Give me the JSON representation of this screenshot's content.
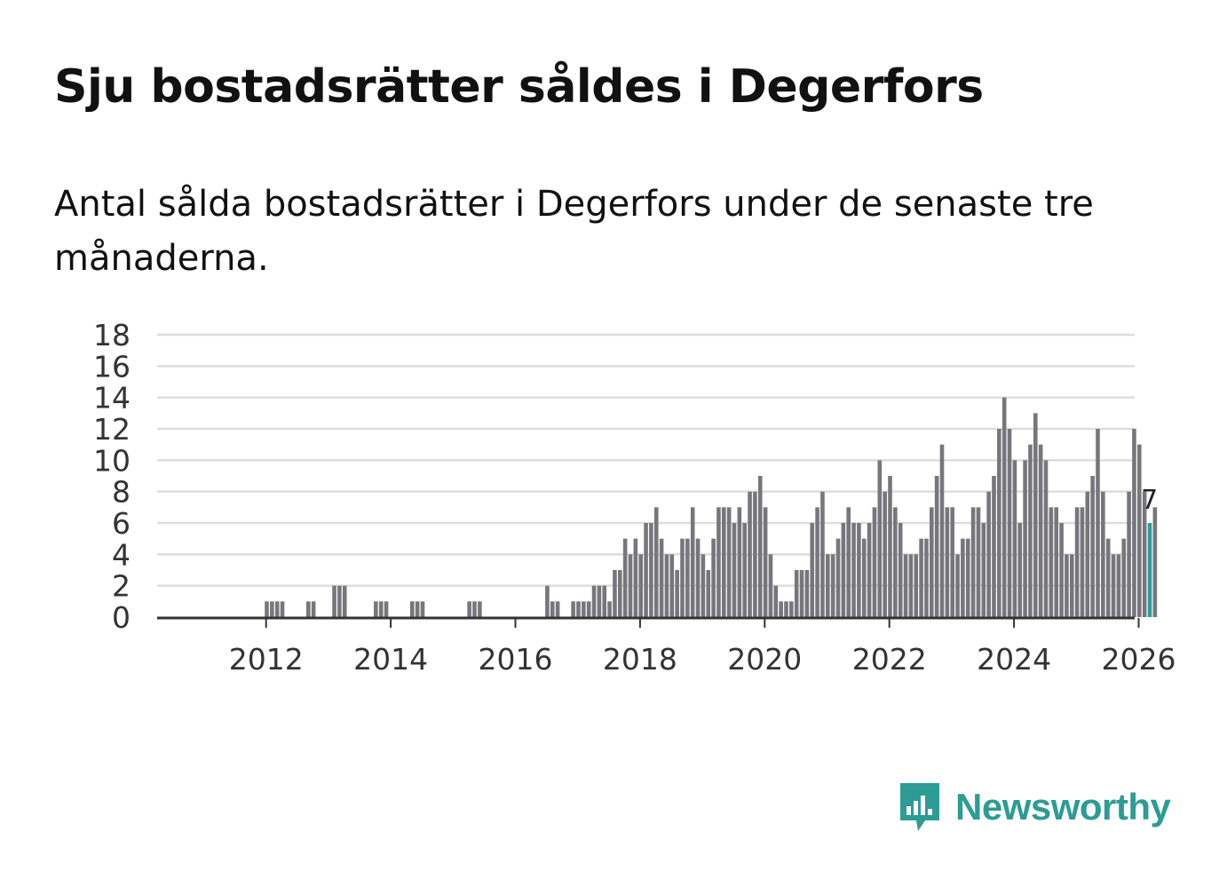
{
  "title": "Sju bostadsrätter såldes i Degerfors",
  "subtitle": "Antal sålda bostadsrätter i Degerfors under de senaste tre månaderna.",
  "brand": {
    "name": "Newsworthy",
    "color": "#2c9c95",
    "icon": "bar-chart-speech-bubble-icon"
  },
  "colors": {
    "bar": "#77767c",
    "highlight": "#2a9d97",
    "grid": "#dddddd",
    "axis": "#333333"
  },
  "chart_data": {
    "type": "bar",
    "title": "Sju bostadsrätter såldes i Degerfors",
    "xlabel": "",
    "ylabel": "",
    "x_start": "2011-01",
    "y_ticks": [
      0,
      2,
      4,
      6,
      8,
      10,
      12,
      14,
      16,
      18
    ],
    "x_ticks": [
      {
        "label": "2012",
        "index": 12
      },
      {
        "label": "2014",
        "index": 36
      },
      {
        "label": "2016",
        "index": 60
      },
      {
        "label": "2018",
        "index": 84
      },
      {
        "label": "2020",
        "index": 108
      },
      {
        "label": "2022",
        "index": 132
      },
      {
        "label": "2024",
        "index": 156
      },
      {
        "label": "2026",
        "index": 180
      }
    ],
    "ylim": [
      0,
      18
    ],
    "grid": true,
    "highlight_index": 182,
    "highlight_label": "7",
    "values": [
      0,
      0,
      0,
      0,
      0,
      0,
      0,
      0,
      0,
      0,
      0,
      0,
      1,
      1,
      1,
      1,
      0,
      0,
      0,
      0,
      1,
      1,
      0,
      0,
      0,
      2,
      2,
      2,
      0,
      0,
      0,
      0,
      0,
      1,
      1,
      1,
      0,
      0,
      0,
      0,
      1,
      1,
      1,
      0,
      0,
      0,
      0,
      0,
      0,
      0,
      0,
      1,
      1,
      1,
      0,
      0,
      0,
      0,
      0,
      0,
      0,
      0,
      0,
      0,
      0,
      0,
      2,
      1,
      1,
      0,
      0,
      1,
      1,
      1,
      1,
      2,
      2,
      2,
      1,
      3,
      3,
      5,
      4,
      5,
      4,
      6,
      6,
      7,
      5,
      4,
      4,
      3,
      5,
      5,
      7,
      5,
      4,
      3,
      5,
      7,
      7,
      7,
      6,
      7,
      6,
      8,
      8,
      9,
      7,
      4,
      2,
      1,
      1,
      1,
      3,
      3,
      3,
      6,
      7,
      8,
      4,
      4,
      5,
      6,
      7,
      6,
      6,
      5,
      6,
      7,
      10,
      8,
      9,
      7,
      6,
      4,
      4,
      4,
      5,
      5,
      7,
      9,
      11,
      7,
      7,
      4,
      5,
      5,
      7,
      7,
      6,
      8,
      9,
      12,
      14,
      12,
      10,
      6,
      10,
      11,
      13,
      11,
      10,
      7,
      7,
      6,
      4,
      4,
      7,
      7,
      8,
      9,
      12,
      8,
      5,
      4,
      4,
      5,
      8,
      12,
      11,
      8,
      6,
      7
    ]
  }
}
